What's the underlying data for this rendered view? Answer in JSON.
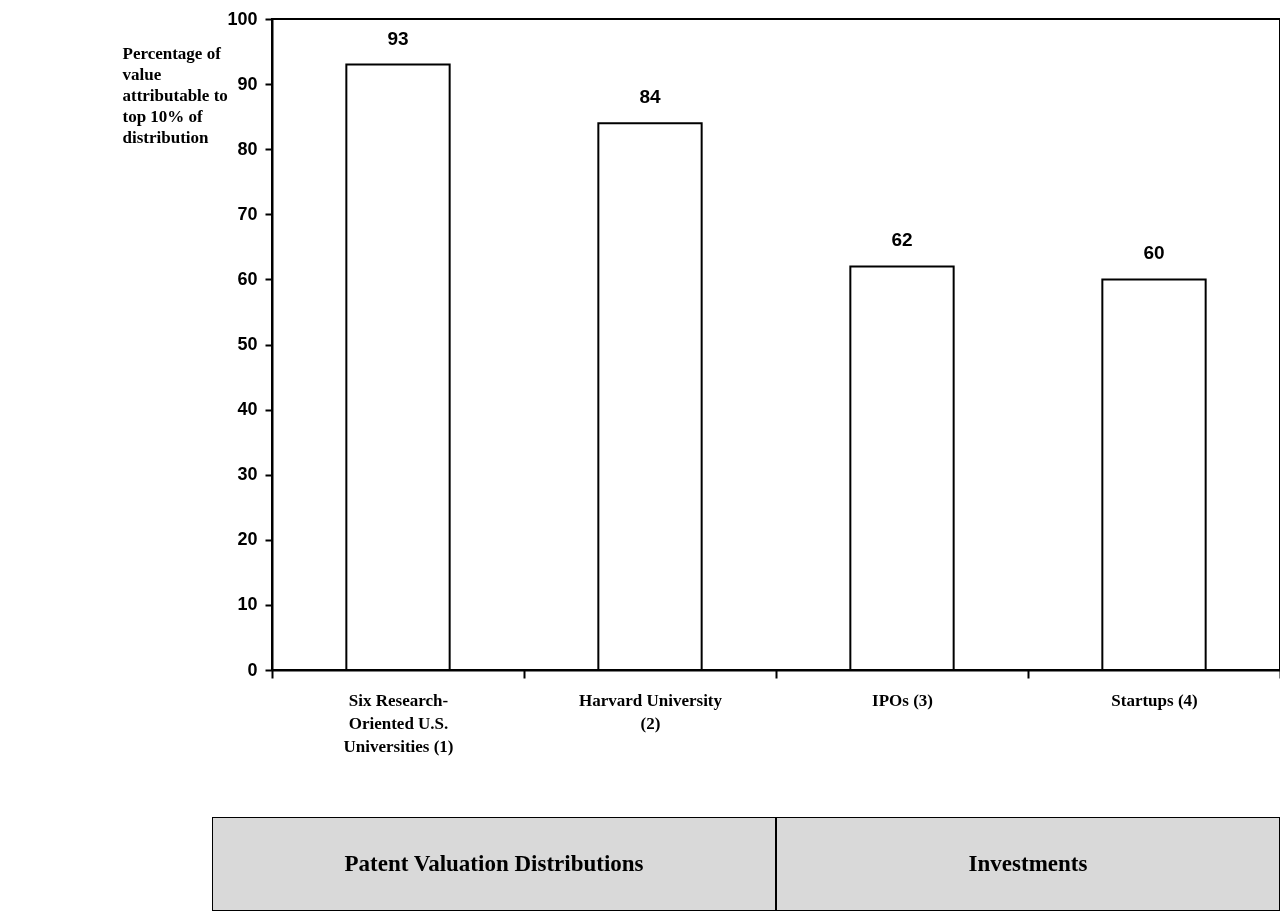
{
  "chart_data": {
    "type": "bar",
    "ylabel": "Percentage of value attributable to top 10% of distribution",
    "categories": [
      "Six Research-Oriented U.S. Universities (1)",
      "Harvard University (2)",
      "IPOs (3)",
      "Startups (4)"
    ],
    "values": [
      93,
      84,
      62,
      60
    ],
    "color": "#ffffff",
    "ylim": [
      0,
      100
    ],
    "yticks": [
      0,
      10,
      20,
      30,
      40,
      50,
      60,
      70,
      80,
      90,
      100
    ],
    "data_labels": true,
    "annotations": [
      "Patent Valuation Distributions",
      "Investments"
    ]
  }
}
